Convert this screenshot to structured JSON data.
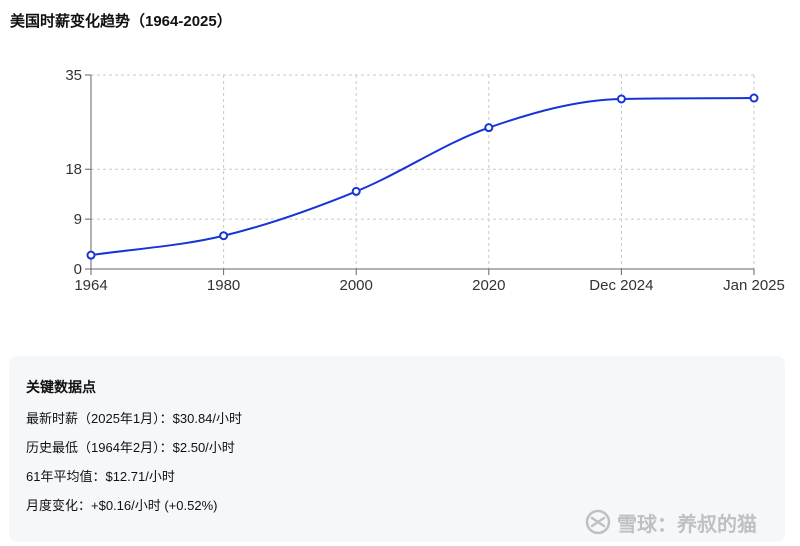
{
  "title": "美国时薪变化趋势（1964-2025）",
  "chart_data": {
    "type": "line",
    "categories": [
      "1964",
      "1980",
      "2000",
      "2020",
      "Dec 2024",
      "Jan 2025"
    ],
    "series": [
      {
        "values": [
          2.5,
          6.0,
          14.0,
          25.5,
          30.68,
          30.84
        ],
        "color": "#1734d6"
      }
    ],
    "y_ticks": [
      0,
      9,
      18,
      35
    ],
    "ylim": [
      0,
      35
    ],
    "grid": true,
    "smooth": true,
    "xlabel": "",
    "ylabel": ""
  },
  "summary": {
    "title": "关键数据点",
    "items": [
      "最新时薪（2025年1月）：$30.84/小时",
      "历史最低（1964年2月）：$2.50/小时",
      "61年平均值：$12.71/小时",
      "月度变化：+$0.16/小时 (+0.52%)"
    ]
  },
  "watermark": {
    "icon": "xueqiu-logo-icon",
    "text": "雪球：养叔的猫"
  }
}
